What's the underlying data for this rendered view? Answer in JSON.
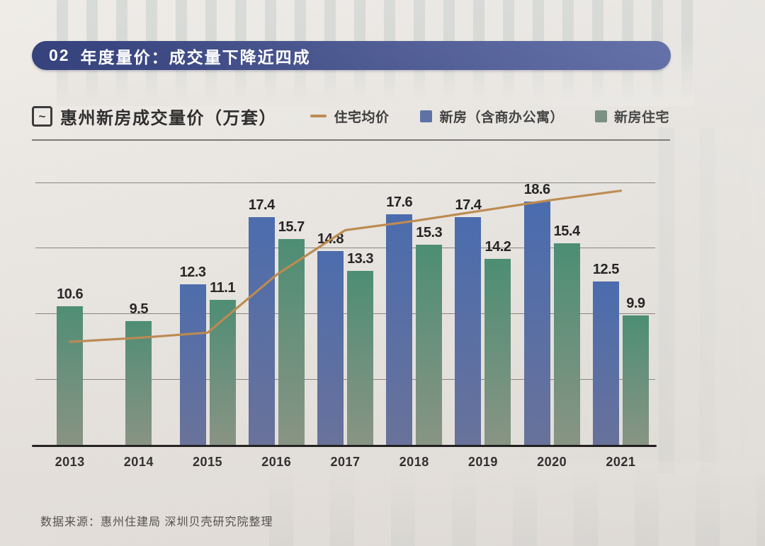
{
  "banner": {
    "number": "02",
    "title": "年度量价：成交量下降近四成"
  },
  "chart": {
    "title": "惠州新房成交量价（万套）",
    "title_icon_glyph": "~",
    "legend": [
      {
        "label": "住宅均价",
        "marker": "line",
        "color": "#bd8b50"
      },
      {
        "label": "新房（含商办公寓）",
        "marker": "square",
        "color": "#5a6fa3"
      },
      {
        "label": "新房住宅",
        "marker": "square",
        "color": "#75897c"
      }
    ]
  },
  "chart_data": {
    "type": "bar",
    "title": "惠州新房成交量价（万套）",
    "unit": "万套",
    "categories": [
      "2013",
      "2014",
      "2015",
      "2016",
      "2017",
      "2018",
      "2019",
      "2020",
      "2021"
    ],
    "series": [
      {
        "name": "新房（含商办公寓）",
        "type": "bar",
        "color": "#4a6cae",
        "color_bottom": "#66719c",
        "values": [
          null,
          null,
          12.3,
          17.4,
          14.8,
          17.6,
          17.4,
          18.6,
          12.5
        ]
      },
      {
        "name": "新房住宅",
        "type": "bar",
        "color": "#4b8e74",
        "color_bottom": "#889584",
        "values": [
          10.6,
          9.5,
          11.1,
          15.7,
          13.3,
          15.3,
          14.2,
          15.4,
          9.9
        ]
      },
      {
        "name": "住宅均价",
        "type": "line",
        "color": "#bd8b50",
        "value_labels_shown": false,
        "values": [
          7.9,
          8.2,
          8.6,
          13.0,
          16.4,
          17.1,
          17.9,
          18.7,
          19.4
        ]
      }
    ],
    "ylim": [
      0,
      21
    ],
    "gridlines": [
      5,
      10,
      15,
      20
    ],
    "grid": true,
    "legend_position": "top-right",
    "bar_value_labels_shown": true
  },
  "source": {
    "text": "数据来源：惠州住建局 深圳贝壳研究院整理"
  }
}
